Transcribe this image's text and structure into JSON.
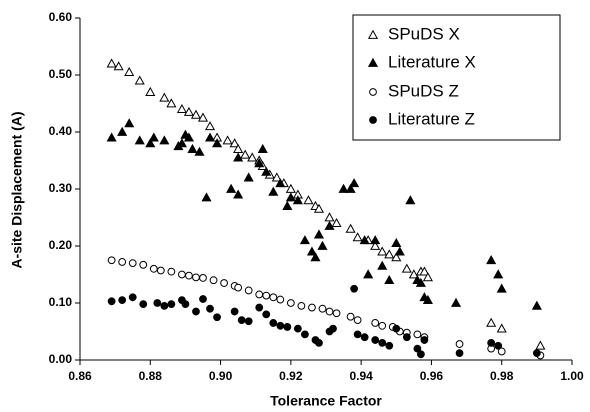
{
  "chart_data": {
    "type": "scatter",
    "x_label": "Tolerance Factor",
    "y_label": "A-site Displacement (A)",
    "xlim": [
      0.86,
      1.0
    ],
    "ylim": [
      0.0,
      0.6
    ],
    "xticks": [
      0.86,
      0.88,
      {
        "value": 0.9,
        "label": "0.90"
      },
      0.92,
      0.94,
      0.96,
      0.98,
      {
        "value": 1.0,
        "label": "1.00"
      }
    ],
    "yticks": [
      {
        "value": 0.0,
        "label": "0.00"
      },
      {
        "value": 0.1,
        "label": "0.10"
      },
      {
        "value": 0.2,
        "label": "0.20"
      },
      {
        "value": 0.3,
        "label": "0.30"
      },
      {
        "value": 0.4,
        "label": "0.40"
      },
      {
        "value": 0.5,
        "label": "0.50"
      },
      {
        "value": 0.6,
        "label": "0.60"
      }
    ],
    "grid": false,
    "legend": "top-right",
    "series": [
      {
        "name": "SPuDS X",
        "marker": "triangle-open",
        "color": "#000000",
        "x": [
          0.869,
          0.871,
          0.874,
          0.877,
          0.88,
          0.884,
          0.886,
          0.889,
          0.891,
          0.893,
          0.895,
          0.897,
          0.899,
          0.902,
          0.904,
          0.905,
          0.907,
          0.909,
          0.911,
          0.912,
          0.914,
          0.916,
          0.918,
          0.92,
          0.922,
          0.925,
          0.927,
          0.928,
          0.931,
          0.933,
          0.937,
          0.939,
          0.942,
          0.944,
          0.946,
          0.948,
          0.95,
          0.953,
          0.955,
          0.957,
          0.958,
          0.959,
          0.977,
          0.98,
          0.991
        ],
        "values": [
          0.52,
          0.515,
          0.505,
          0.49,
          0.47,
          0.46,
          0.45,
          0.44,
          0.435,
          0.43,
          0.425,
          0.41,
          0.39,
          0.385,
          0.38,
          0.37,
          0.36,
          0.355,
          0.35,
          0.34,
          0.325,
          0.32,
          0.31,
          0.3,
          0.29,
          0.28,
          0.27,
          0.265,
          0.25,
          0.24,
          0.23,
          0.215,
          0.21,
          0.2,
          0.19,
          0.185,
          0.18,
          0.16,
          0.15,
          0.155,
          0.155,
          0.145,
          0.065,
          0.055,
          0.025
        ]
      },
      {
        "name": "Literature X",
        "marker": "triangle",
        "color": "#000000",
        "x": [
          0.869,
          0.872,
          0.874,
          0.877,
          0.88,
          0.881,
          0.884,
          0.888,
          0.889,
          0.89,
          0.891,
          0.892,
          0.894,
          0.896,
          0.897,
          0.899,
          0.903,
          0.905,
          0.905,
          0.908,
          0.911,
          0.912,
          0.913,
          0.915,
          0.917,
          0.919,
          0.92,
          0.922,
          0.924,
          0.926,
          0.927,
          0.928,
          0.929,
          0.931,
          0.935,
          0.937,
          0.938,
          0.941,
          0.942,
          0.944,
          0.946,
          0.948,
          0.95,
          0.951,
          0.954,
          0.956,
          0.957,
          0.958,
          0.959,
          0.967,
          0.977,
          0.979,
          0.98,
          0.99
        ],
        "values": [
          0.39,
          0.4,
          0.415,
          0.385,
          0.38,
          0.39,
          0.385,
          0.375,
          0.38,
          0.395,
          0.39,
          0.37,
          0.365,
          0.285,
          0.39,
          0.38,
          0.3,
          0.29,
          0.355,
          0.32,
          0.345,
          0.37,
          0.33,
          0.295,
          0.31,
          0.27,
          0.285,
          0.28,
          0.21,
          0.19,
          0.18,
          0.22,
          0.2,
          0.235,
          0.3,
          0.3,
          0.31,
          0.21,
          0.15,
          0.21,
          0.165,
          0.14,
          0.205,
          0.19,
          0.28,
          0.14,
          0.135,
          0.11,
          0.105,
          0.1,
          0.175,
          0.15,
          0.125,
          0.095
        ]
      },
      {
        "name": "SPuDS Z",
        "marker": "circle-open",
        "color": "#000000",
        "x": [
          0.869,
          0.872,
          0.875,
          0.878,
          0.881,
          0.883,
          0.886,
          0.889,
          0.891,
          0.893,
          0.895,
          0.898,
          0.901,
          0.904,
          0.905,
          0.908,
          0.911,
          0.913,
          0.915,
          0.917,
          0.92,
          0.923,
          0.926,
          0.929,
          0.931,
          0.933,
          0.937,
          0.939,
          0.944,
          0.946,
          0.949,
          0.951,
          0.953,
          0.956,
          0.958,
          0.968,
          0.977,
          0.98,
          0.991
        ],
        "values": [
          0.175,
          0.172,
          0.17,
          0.167,
          0.16,
          0.157,
          0.155,
          0.15,
          0.148,
          0.145,
          0.144,
          0.14,
          0.135,
          0.13,
          0.127,
          0.122,
          0.115,
          0.113,
          0.11,
          0.106,
          0.1,
          0.095,
          0.092,
          0.09,
          0.085,
          0.082,
          0.076,
          0.07,
          0.065,
          0.06,
          0.058,
          0.05,
          0.048,
          0.045,
          0.04,
          0.028,
          0.02,
          0.015,
          0.008
        ]
      },
      {
        "name": "Literature Z",
        "marker": "circle",
        "color": "#000000",
        "x": [
          0.869,
          0.872,
          0.875,
          0.878,
          0.882,
          0.884,
          0.886,
          0.889,
          0.89,
          0.893,
          0.895,
          0.897,
          0.899,
          0.904,
          0.906,
          0.908,
          0.911,
          0.913,
          0.915,
          0.917,
          0.919,
          0.922,
          0.924,
          0.927,
          0.928,
          0.931,
          0.932,
          0.938,
          0.939,
          0.941,
          0.944,
          0.946,
          0.948,
          0.95,
          0.953,
          0.956,
          0.957,
          0.958,
          0.968,
          0.977,
          0.979,
          0.99
        ],
        "values": [
          0.103,
          0.105,
          0.11,
          0.098,
          0.1,
          0.095,
          0.098,
          0.105,
          0.098,
          0.085,
          0.107,
          0.09,
          0.075,
          0.085,
          0.07,
          0.068,
          0.092,
          0.08,
          0.065,
          0.06,
          0.058,
          0.055,
          0.045,
          0.035,
          0.03,
          0.05,
          0.055,
          0.125,
          0.045,
          0.04,
          0.035,
          0.03,
          0.025,
          0.055,
          0.04,
          0.02,
          0.01,
          0.035,
          0.012,
          0.03,
          0.025,
          0.012
        ]
      }
    ]
  }
}
